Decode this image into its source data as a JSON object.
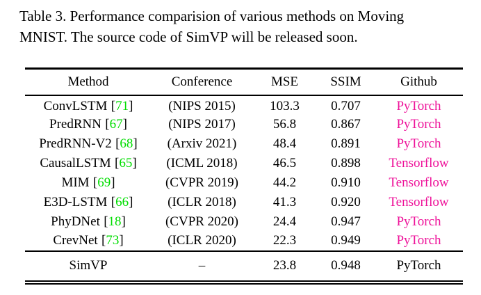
{
  "caption": {
    "line1": "Table 3. Performance comparision of various methods on Moving",
    "line2": "MNIST. The source code of SimVP will be released soon."
  },
  "table": {
    "columns": [
      "Method",
      "Conference",
      "MSE",
      "SSIM",
      "Github"
    ],
    "bracket_open": "[",
    "bracket_close": "]",
    "rows": [
      {
        "method": "ConvLSTM",
        "cite": "71",
        "conference": "(NIPS 2015)",
        "mse": "103.3",
        "ssim": "0.707",
        "github": "PyTorch"
      },
      {
        "method": "PredRNN",
        "cite": "67",
        "conference": "(NIPS 2017)",
        "mse": "56.8",
        "ssim": "0.867",
        "github": "PyTorch"
      },
      {
        "method": "PredRNN-V2",
        "cite": "68",
        "conference": "(Arxiv 2021)",
        "mse": "48.4",
        "ssim": "0.891",
        "github": "PyTorch"
      },
      {
        "method": "CausalLSTM",
        "cite": "65",
        "conference": "(ICML 2018)",
        "mse": "46.5",
        "ssim": "0.898",
        "github": "Tensorflow"
      },
      {
        "method": "MIM",
        "cite": "69",
        "conference": "(CVPR 2019)",
        "mse": "44.2",
        "ssim": "0.910",
        "github": "Tensorflow"
      },
      {
        "method": "E3D-LSTM",
        "cite": "66",
        "conference": "(ICLR 2018)",
        "mse": "41.3",
        "ssim": "0.920",
        "github": "Tensorflow"
      },
      {
        "method": "PhyDNet",
        "cite": "18",
        "conference": "(CVPR 2020)",
        "mse": "24.4",
        "ssim": "0.947",
        "github": "PyTorch"
      },
      {
        "method": "CrevNet",
        "cite": "73",
        "conference": "(ICLR 2020)",
        "mse": "22.3",
        "ssim": "0.949",
        "github": "PyTorch"
      }
    ],
    "summary_row": {
      "method": "SimVP",
      "conference": "–",
      "mse": "23.8",
      "ssim": "0.948",
      "github": "PyTorch"
    }
  },
  "colors": {
    "citation_green": "#00dd00",
    "link_magenta": "#ee1199",
    "text_black": "#000000",
    "background": "#ffffff"
  }
}
